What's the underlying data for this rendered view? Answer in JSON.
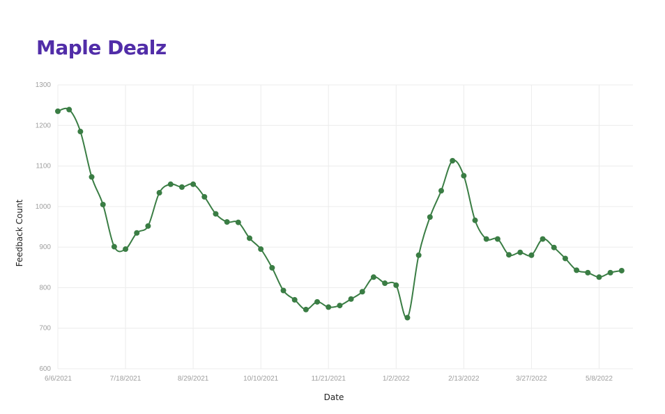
{
  "title": "Maple Dealz",
  "colors": {
    "title": "#512da8",
    "line": "#3a7d44",
    "grid": "#ececec"
  },
  "chart_data": {
    "type": "line",
    "xlabel": "Date",
    "ylabel": "Feedback Count",
    "ylim": [
      600,
      1300
    ],
    "yticks": [
      600,
      700,
      800,
      900,
      1000,
      1100,
      1200,
      1300
    ],
    "xlim": [
      "2021-06-06",
      "2022-05-29"
    ],
    "xticks": [
      {
        "date": "2021-06-06",
        "label": "6/6/2021"
      },
      {
        "date": "2021-07-18",
        "label": "7/18/2021"
      },
      {
        "date": "2021-08-29",
        "label": "8/29/2021"
      },
      {
        "date": "2021-10-10",
        "label": "10/10/2021"
      },
      {
        "date": "2021-11-21",
        "label": "11/21/2021"
      },
      {
        "date": "2022-01-02",
        "label": "1/2/2022"
      },
      {
        "date": "2022-02-13",
        "label": "2/13/2022"
      },
      {
        "date": "2022-03-27",
        "label": "3/27/2022"
      },
      {
        "date": "2022-05-08",
        "label": "5/8/2022"
      }
    ],
    "grid": true,
    "legend": "none",
    "x": [
      "2021-06-06",
      "2021-06-13",
      "2021-06-20",
      "2021-06-27",
      "2021-07-04",
      "2021-07-11",
      "2021-07-18",
      "2021-07-25",
      "2021-08-01",
      "2021-08-08",
      "2021-08-15",
      "2021-08-22",
      "2021-08-29",
      "2021-09-05",
      "2021-09-12",
      "2021-09-19",
      "2021-09-26",
      "2021-10-03",
      "2021-10-10",
      "2021-10-17",
      "2021-10-24",
      "2021-10-31",
      "2021-11-07",
      "2021-11-14",
      "2021-11-21",
      "2021-11-28",
      "2021-12-05",
      "2021-12-12",
      "2021-12-19",
      "2021-12-26",
      "2022-01-02",
      "2022-01-09",
      "2022-01-16",
      "2022-01-23",
      "2022-01-30",
      "2022-02-06",
      "2022-02-13",
      "2022-02-20",
      "2022-02-27",
      "2022-03-06",
      "2022-03-13",
      "2022-03-20",
      "2022-03-27",
      "2022-04-03",
      "2022-04-10",
      "2022-04-17",
      "2022-04-24",
      "2022-05-01",
      "2022-05-08",
      "2022-05-15",
      "2022-05-22"
    ],
    "values": [
      1235,
      1239,
      1185,
      1073,
      1005,
      901,
      895,
      935,
      952,
      1034,
      1055,
      1048,
      1055,
      1024,
      982,
      962,
      961,
      922,
      895,
      849,
      793,
      770,
      746,
      765,
      752,
      756,
      772,
      790,
      826,
      811,
      806,
      726,
      880,
      974,
      1039,
      1113,
      1076,
      966,
      920,
      920,
      881,
      887,
      880,
      920,
      899,
      872,
      843,
      837,
      826,
      837,
      842
    ]
  }
}
